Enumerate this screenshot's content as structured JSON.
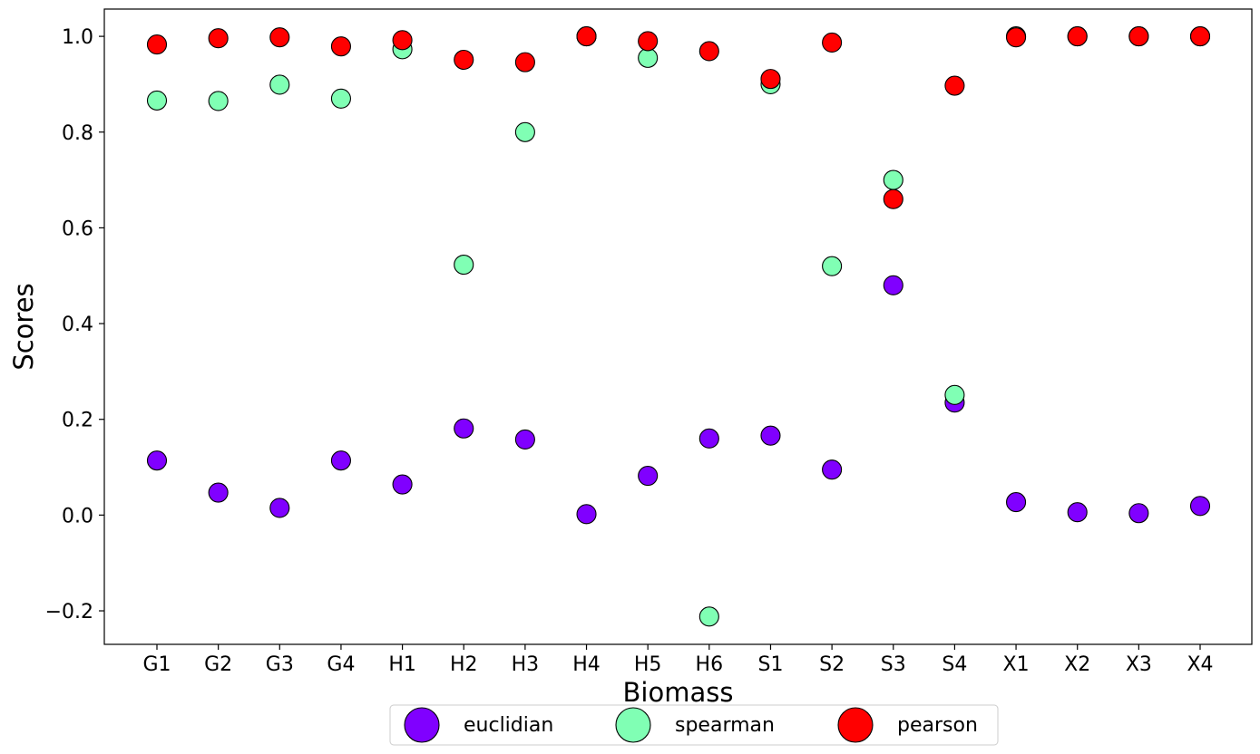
{
  "chart_data": {
    "type": "scatter",
    "title": "",
    "xlabel": "Biomass",
    "ylabel": "Scores",
    "categories": [
      "G1",
      "G2",
      "G3",
      "G4",
      "H1",
      "H2",
      "H3",
      "H4",
      "H5",
      "H6",
      "S1",
      "S2",
      "S3",
      "S4",
      "X1",
      "X2",
      "X3",
      "X4"
    ],
    "ylim": [
      -0.27,
      1.057
    ],
    "yticks": [
      -0.2,
      0.0,
      0.2,
      0.4,
      0.6,
      0.8,
      1.0
    ],
    "ytick_labels": [
      "−0.2",
      "0.0",
      "0.2",
      "0.4",
      "0.6",
      "0.8",
      "1.0"
    ],
    "grid": false,
    "legend_position": "bottom-center, below the axes",
    "series": [
      {
        "name": "euclidian",
        "color": "#8000ff",
        "values": [
          0.114,
          0.047,
          0.015,
          0.114,
          0.064,
          0.181,
          0.158,
          0.002,
          0.082,
          0.16,
          0.166,
          0.095,
          0.48,
          0.235,
          0.027,
          0.006,
          0.004,
          0.019
        ]
      },
      {
        "name": "spearman",
        "color": "#80ffb4",
        "values": [
          0.866,
          0.865,
          0.899,
          0.87,
          0.973,
          0.523,
          0.8,
          1.0,
          0.955,
          -0.212,
          0.9,
          0.52,
          0.7,
          0.251,
          1.0,
          1.0,
          1.0,
          1.0
        ]
      },
      {
        "name": "pearson",
        "color": "#ff0000",
        "values": [
          0.983,
          0.996,
          0.998,
          0.979,
          0.992,
          0.951,
          0.946,
          1.0,
          0.99,
          0.969,
          0.911,
          0.987,
          0.66,
          0.897,
          0.998,
          1.0,
          1.0,
          1.0
        ]
      }
    ]
  }
}
